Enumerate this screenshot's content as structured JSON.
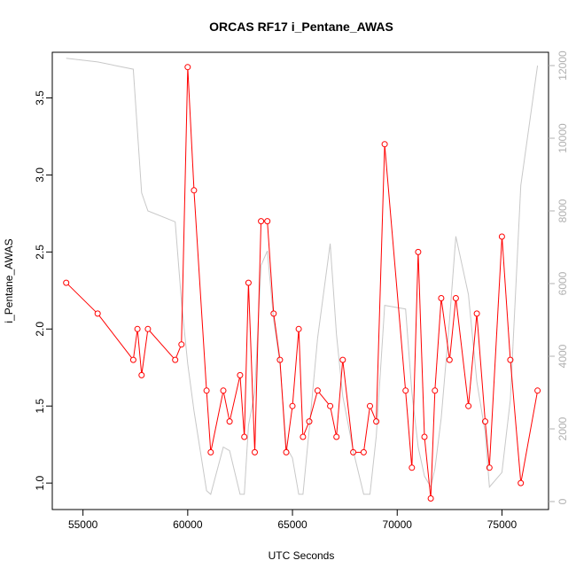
{
  "chart_data": {
    "type": "line",
    "title": "ORCAS RF17 i_Pentane_AWAS",
    "xlabel": "UTC Seconds",
    "ylabel": "i_Pentane_AWAS",
    "xlim": [
      54000,
      76800
    ],
    "ylim": [
      0.88,
      3.71
    ],
    "y2lim": [
      0,
      12000
    ],
    "xticks": [
      55000,
      60000,
      65000,
      70000,
      75000
    ],
    "yticks": [
      1.0,
      1.5,
      2.0,
      2.5,
      3.0,
      3.5
    ],
    "yticks_labels": [
      "1.0",
      "1.5",
      "2.0",
      "2.5",
      "3.0",
      "3.5"
    ],
    "y2ticks": [
      0,
      2000,
      4000,
      6000,
      8000,
      10000,
      12000
    ],
    "colors": {
      "primary": "#ff0000",
      "secondary": "#c8c8c8",
      "right_axis": "#b0b0b0"
    },
    "series": [
      {
        "axis": "left",
        "style": "line+markers",
        "x": [
          54200,
          55700,
          57400,
          57600,
          57800,
          58100,
          59400,
          59700,
          60000,
          60300,
          60900,
          61100,
          61700,
          62000,
          62500,
          62700,
          62900,
          63200,
          63500,
          63800,
          64100,
          64400,
          64700,
          65000,
          65300,
          65500,
          65800,
          66200,
          66800,
          67100,
          67400,
          67900,
          68400,
          68700,
          69000,
          69400,
          70400,
          70700,
          71000,
          71300,
          71600,
          71800,
          72100,
          72500,
          72800,
          73400,
          73800,
          74200,
          74400,
          75000,
          75400,
          75900,
          76700
        ],
        "y": [
          2.3,
          2.1,
          1.8,
          2.0,
          1.7,
          2.0,
          1.8,
          1.9,
          3.7,
          2.9,
          1.6,
          1.2,
          1.6,
          1.4,
          1.7,
          1.3,
          2.3,
          1.2,
          2.7,
          2.7,
          2.1,
          1.8,
          1.2,
          1.5,
          2.0,
          1.3,
          1.4,
          1.6,
          1.5,
          1.3,
          1.8,
          1.2,
          1.2,
          1.5,
          1.4,
          3.2,
          1.6,
          1.1,
          2.5,
          1.3,
          0.9,
          1.6,
          2.2,
          1.8,
          2.2,
          1.5,
          2.1,
          1.4,
          1.1,
          2.6,
          1.8,
          1.0,
          1.6
        ]
      },
      {
        "axis": "right",
        "style": "line",
        "x": [
          54200,
          55700,
          57400,
          57800,
          58100,
          59400,
          59700,
          60000,
          60300,
          60900,
          61100,
          61700,
          62000,
          62500,
          62700,
          62900,
          63200,
          63500,
          63800,
          64100,
          64400,
          64700,
          65000,
          65300,
          65500,
          65800,
          66200,
          66800,
          67100,
          67400,
          67900,
          68400,
          68700,
          69000,
          69400,
          70400,
          70700,
          71000,
          71300,
          71600,
          71800,
          72100,
          72500,
          72800,
          73400,
          73800,
          74200,
          74400,
          75000,
          75400,
          75900,
          76700
        ],
        "y": [
          12200,
          12100,
          11900,
          8500,
          8000,
          7700,
          5500,
          3800,
          2500,
          300,
          200,
          1500,
          1400,
          200,
          200,
          2100,
          3000,
          6500,
          6900,
          5000,
          3800,
          1500,
          1200,
          200,
          200,
          2000,
          4500,
          7100,
          4600,
          2900,
          1400,
          200,
          200,
          1800,
          5400,
          5300,
          3000,
          1500,
          700,
          400,
          900,
          2300,
          5000,
          7300,
          5700,
          3300,
          1900,
          400,
          800,
          2800,
          8700,
          12000
        ]
      }
    ]
  }
}
